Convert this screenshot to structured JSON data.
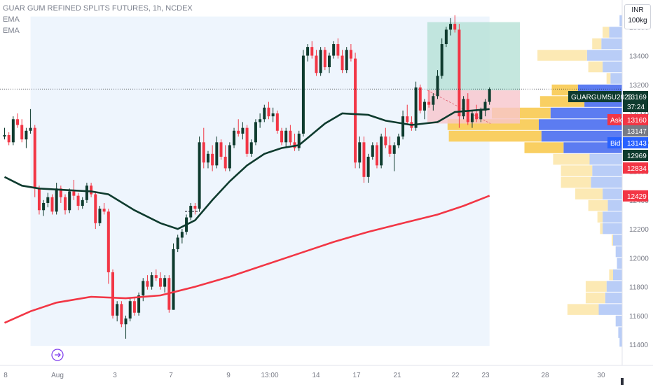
{
  "legend": {
    "title": "GUAR GUM REFINED SPLITS FUTURES, 1h, NCDEX",
    "ema1": "EMA",
    "ema2": "EMA"
  },
  "unit_box": {
    "currency": "INR",
    "unit": "100kg"
  },
  "colors": {
    "up": "#0e3b2e",
    "down": "#f23645",
    "ema_fast": "#0e3b2e",
    "ema_slow": "#f23645",
    "profit_zone": "#b2dfd3",
    "loss_zone": "#f7c6cc",
    "range_bg": "#eef5fd",
    "vp_blue": "#b9cdf7",
    "vp_blue_dark": "#5c7cf1",
    "vp_yellow": "#fce9b4",
    "vp_yellow_dark": "#f9cf62"
  },
  "chart_data": {
    "type": "candlestick",
    "y_axis": {
      "ticks": [
        11400,
        11600,
        11800,
        12000,
        12200,
        12400,
        12600,
        12800,
        13000,
        13200,
        13400,
        13600
      ],
      "range": [
        11300,
        13700
      ]
    },
    "x_axis": {
      "ticks": [
        "8",
        "Aug",
        "3",
        "7",
        "9",
        "13:00",
        "14",
        "17",
        "21",
        "22",
        "23",
        "28",
        "30"
      ]
    },
    "price_tags": [
      {
        "label": "GUARGUM5U2023",
        "value": "13169",
        "kind": "current"
      },
      {
        "label": "",
        "value": "37:24",
        "kind": "countdown"
      },
      {
        "label": "Ask",
        "value": "13160",
        "kind": "ask"
      },
      {
        "label": "",
        "value": "13147",
        "kind": "gray"
      },
      {
        "label": "Bid",
        "value": "13143",
        "kind": "bid"
      },
      {
        "label": "",
        "value": "12969",
        "kind": "dark"
      },
      {
        "label": "",
        "value": "12834",
        "kind": "red"
      },
      {
        "label": "",
        "value": "12429",
        "kind": "red"
      }
    ],
    "candles": [
      [
        12840,
        12900,
        12820,
        12850
      ],
      [
        12850,
        12870,
        12780,
        12800
      ],
      [
        12800,
        12980,
        12780,
        12960
      ],
      [
        12960,
        13000,
        12900,
        12920
      ],
      [
        12920,
        12960,
        12800,
        12820
      ],
      [
        12820,
        12900,
        12760,
        12880
      ],
      [
        12880,
        13030,
        12860,
        12900
      ],
      [
        12900,
        12920,
        12420,
        12480
      ],
      [
        12480,
        12500,
        12300,
        12330
      ],
      [
        12330,
        12400,
        12290,
        12380
      ],
      [
        12380,
        12450,
        12350,
        12420
      ],
      [
        12420,
        12440,
        12300,
        12320
      ],
      [
        12320,
        12520,
        12300,
        12480
      ],
      [
        12480,
        12500,
        12380,
        12420
      ],
      [
        12420,
        12440,
        12300,
        12330
      ],
      [
        12330,
        12480,
        12310,
        12460
      ],
      [
        12460,
        12540,
        12400,
        12430
      ],
      [
        12430,
        12450,
        12330,
        12360
      ],
      [
        12360,
        12420,
        12340,
        12400
      ],
      [
        12400,
        12520,
        12380,
        12500
      ],
      [
        12500,
        12520,
        12420,
        12440
      ],
      [
        12440,
        12460,
        12200,
        12240
      ],
      [
        12240,
        12360,
        12220,
        12340
      ],
      [
        12340,
        12380,
        12300,
        12320
      ],
      [
        12320,
        12340,
        11820,
        11900
      ],
      [
        11900,
        11920,
        11580,
        11600
      ],
      [
        11600,
        11700,
        11560,
        11680
      ],
      [
        11680,
        11700,
        11520,
        11540
      ],
      [
        11540,
        11600,
        11440,
        11580
      ],
      [
        11580,
        11720,
        11560,
        11700
      ],
      [
        11700,
        11720,
        11600,
        11620
      ],
      [
        11620,
        11760,
        11600,
        11740
      ],
      [
        11740,
        11860,
        11700,
        11840
      ],
      [
        11840,
        11880,
        11780,
        11800
      ],
      [
        11800,
        11900,
        11780,
        11880
      ],
      [
        11880,
        11920,
        11840,
        11860
      ],
      [
        11860,
        11900,
        11780,
        11800
      ],
      [
        11800,
        11880,
        11760,
        11860
      ],
      [
        11860,
        11880,
        11620,
        11640
      ],
      [
        11640,
        12100,
        11640,
        12060
      ],
      [
        12060,
        12160,
        12040,
        12140
      ],
      [
        12140,
        12200,
        12100,
        12180
      ],
      [
        12180,
        12300,
        12160,
        12280
      ],
      [
        12280,
        12380,
        12260,
        12360
      ],
      [
        12360,
        12380,
        12300,
        12340
      ],
      [
        12340,
        12840,
        12320,
        12800
      ],
      [
        12800,
        12900,
        12620,
        12660
      ],
      [
        12660,
        12740,
        12620,
        12720
      ],
      [
        12720,
        12780,
        12600,
        12640
      ],
      [
        12640,
        12840,
        12620,
        12800
      ],
      [
        12800,
        12820,
        12680,
        12700
      ],
      [
        12700,
        12780,
        12600,
        12620
      ],
      [
        12620,
        12800,
        12600,
        12780
      ],
      [
        12780,
        12900,
        12760,
        12880
      ],
      [
        12880,
        12960,
        12840,
        12860
      ],
      [
        12860,
        12940,
        12820,
        12900
      ],
      [
        12900,
        12920,
        12700,
        12720
      ],
      [
        12720,
        12820,
        12700,
        12800
      ],
      [
        12800,
        12960,
        12780,
        12940
      ],
      [
        12940,
        13000,
        12900,
        12960
      ],
      [
        12960,
        13060,
        12940,
        13040
      ],
      [
        13040,
        13080,
        12960,
        12980
      ],
      [
        12980,
        13040,
        12940,
        13000
      ],
      [
        13000,
        13020,
        12860,
        12880
      ],
      [
        12880,
        12900,
        12780,
        12800
      ],
      [
        12800,
        12900,
        12760,
        12880
      ],
      [
        12880,
        12920,
        12780,
        12800
      ],
      [
        12800,
        12860,
        12740,
        12760
      ],
      [
        12760,
        12880,
        12740,
        12860
      ],
      [
        12860,
        13440,
        12840,
        13400
      ],
      [
        13400,
        13480,
        13360,
        13460
      ],
      [
        13460,
        13500,
        13380,
        13400
      ],
      [
        13400,
        13440,
        13260,
        13280
      ],
      [
        13280,
        13460,
        13260,
        13440
      ],
      [
        13440,
        13460,
        13300,
        13320
      ],
      [
        13320,
        13420,
        13280,
        13400
      ],
      [
        13400,
        13500,
        13380,
        13480
      ],
      [
        13480,
        13520,
        13380,
        13400
      ],
      [
        13400,
        13440,
        13280,
        13300
      ],
      [
        13300,
        13460,
        13280,
        13440
      ],
      [
        13440,
        13480,
        13360,
        13380
      ],
      [
        13380,
        13420,
        12620,
        12660
      ],
      [
        12660,
        12840,
        12620,
        12800
      ],
      [
        12800,
        12840,
        12520,
        12560
      ],
      [
        12560,
        12720,
        12520,
        12700
      ],
      [
        12700,
        12800,
        12680,
        12780
      ],
      [
        12780,
        12800,
        12620,
        12640
      ],
      [
        12640,
        12860,
        12620,
        12840
      ],
      [
        12840,
        12900,
        12760,
        12780
      ],
      [
        12780,
        12840,
        12700,
        12720
      ],
      [
        12720,
        12800,
        12600,
        12780
      ],
      [
        12780,
        12860,
        12760,
        12840
      ],
      [
        12840,
        13020,
        12820,
        12980
      ],
      [
        12980,
        13060,
        12920,
        12940
      ],
      [
        12940,
        12980,
        12880,
        12900
      ],
      [
        12900,
        13220,
        12880,
        13180
      ],
      [
        13180,
        13200,
        13000,
        13020
      ],
      [
        13020,
        13100,
        12960,
        13080
      ],
      [
        13080,
        13160,
        13040,
        13060
      ],
      [
        13060,
        13140,
        13020,
        13120
      ],
      [
        13120,
        13300,
        13100,
        13260
      ],
      [
        13260,
        13520,
        13240,
        13480
      ],
      [
        13480,
        13600,
        13460,
        13580
      ],
      [
        13580,
        13660,
        13540,
        13620
      ],
      [
        13620,
        13680,
        13560,
        13580
      ],
      [
        13580,
        13620,
        12900,
        12980
      ],
      [
        12980,
        13120,
        12960,
        13100
      ],
      [
        13100,
        13140,
        12920,
        12940
      ],
      [
        12940,
        13020,
        12900,
        13000
      ],
      [
        13000,
        13060,
        12940,
        12960
      ],
      [
        12960,
        13040,
        12940,
        13020
      ],
      [
        13020,
        13100,
        12980,
        13080
      ],
      [
        13080,
        13180,
        13060,
        13169
      ]
    ],
    "ema_fast": [
      [
        0,
        12560
      ],
      [
        4,
        12500
      ],
      [
        8,
        12480
      ],
      [
        14,
        12470
      ],
      [
        20,
        12460
      ],
      [
        24,
        12440
      ],
      [
        30,
        12330
      ],
      [
        36,
        12240
      ],
      [
        40,
        12200
      ],
      [
        44,
        12260
      ],
      [
        48,
        12400
      ],
      [
        52,
        12530
      ],
      [
        56,
        12640
      ],
      [
        60,
        12720
      ],
      [
        64,
        12760
      ],
      [
        68,
        12780
      ],
      [
        70,
        12830
      ],
      [
        74,
        12930
      ],
      [
        78,
        13000
      ],
      [
        84,
        12990
      ],
      [
        88,
        12950
      ],
      [
        94,
        12920
      ],
      [
        100,
        12940
      ],
      [
        104,
        13010
      ],
      [
        108,
        13020
      ],
      [
        112,
        13030
      ]
    ],
    "ema_slow": [
      [
        0,
        11550
      ],
      [
        6,
        11630
      ],
      [
        12,
        11690
      ],
      [
        20,
        11730
      ],
      [
        28,
        11720
      ],
      [
        36,
        11740
      ],
      [
        44,
        11800
      ],
      [
        52,
        11870
      ],
      [
        60,
        11950
      ],
      [
        68,
        12030
      ],
      [
        76,
        12110
      ],
      [
        84,
        12180
      ],
      [
        92,
        12240
      ],
      [
        100,
        12300
      ],
      [
        106,
        12360
      ],
      [
        112,
        12430
      ]
    ],
    "volume_profile": [
      {
        "price": 13640,
        "blue": 4,
        "yellow": 0
      },
      {
        "price": 13560,
        "blue": 20,
        "yellow": 10
      },
      {
        "price": 13480,
        "blue": 32,
        "yellow": 14
      },
      {
        "price": 13400,
        "blue": 54,
        "yellow": 76
      },
      {
        "price": 13320,
        "blue": 30,
        "yellow": 22
      },
      {
        "price": 13240,
        "blue": 18,
        "yellow": 6
      },
      {
        "price": 13160,
        "blue": 68,
        "yellow": 40
      },
      {
        "price": 13080,
        "blue": 58,
        "yellow": 68
      },
      {
        "price": 13000,
        "blue": 110,
        "yellow": 90
      },
      {
        "price": 12920,
        "blue": 128,
        "yellow": 140
      },
      {
        "price": 12840,
        "blue": 124,
        "yellow": 142
      },
      {
        "price": 12760,
        "blue": 90,
        "yellow": 60
      },
      {
        "price": 12680,
        "blue": 50,
        "yellow": 56
      },
      {
        "price": 12600,
        "blue": 46,
        "yellow": 48
      },
      {
        "price": 12520,
        "blue": 48,
        "yellow": 46
      },
      {
        "price": 12440,
        "blue": 30,
        "yellow": 42
      },
      {
        "price": 12360,
        "blue": 22,
        "yellow": 30
      },
      {
        "price": 12280,
        "blue": 30,
        "yellow": 8
      },
      {
        "price": 12200,
        "blue": 30,
        "yellow": 4
      },
      {
        "price": 12120,
        "blue": 14,
        "yellow": 2
      },
      {
        "price": 12040,
        "blue": 10,
        "yellow": 0
      },
      {
        "price": 11960,
        "blue": 8,
        "yellow": 0
      },
      {
        "price": 11880,
        "blue": 14,
        "yellow": 6
      },
      {
        "price": 11800,
        "blue": 24,
        "yellow": 32
      },
      {
        "price": 11720,
        "blue": 26,
        "yellow": 30
      },
      {
        "price": 11640,
        "blue": 36,
        "yellow": 48
      },
      {
        "price": 11560,
        "blue": 10,
        "yellow": 0
      },
      {
        "price": 11480,
        "blue": 6,
        "yellow": 0
      },
      {
        "price": 11420,
        "blue": 4,
        "yellow": 0
      }
    ],
    "position_zone": {
      "entry": 13160,
      "target": 13700,
      "stop": 12930,
      "from_candle": 97,
      "to_candle": 126
    },
    "range_box": {
      "top": 13700,
      "bottom": 11390,
      "from_candle": 6,
      "to_candle": 112
    },
    "current_price_line": 13169
  }
}
